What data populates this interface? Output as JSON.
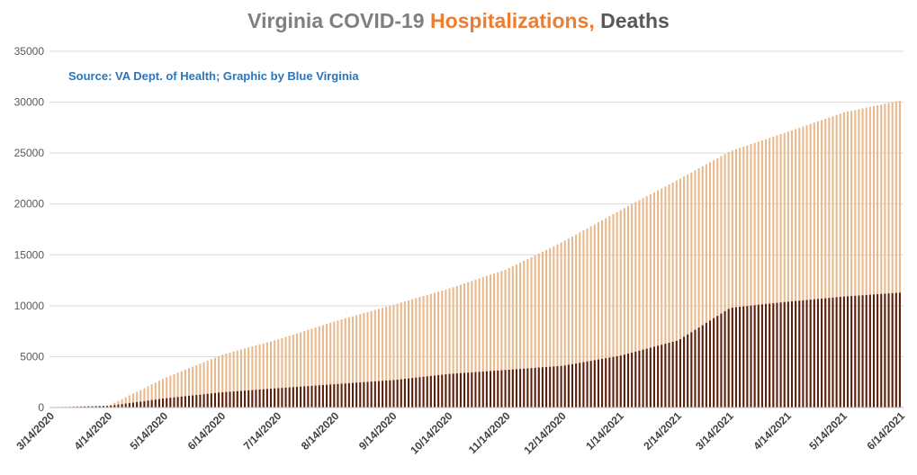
{
  "chart_data": {
    "type": "bar",
    "title_parts": [
      {
        "text": "Virginia COVID-19 ",
        "color": "#7f7f7f"
      },
      {
        "text": "Hospitalizations,",
        "color": "#ed7d31"
      },
      {
        "text": " Deaths",
        "color": "#595959"
      }
    ],
    "annotation": "Source: VA Dept. of Health; Graphic by Blue Virginia",
    "xlabel": "",
    "ylabel": "",
    "ylim": [
      0,
      35000
    ],
    "yticks": [
      "0",
      "5000",
      "10000",
      "15000",
      "20000",
      "25000",
      "30000",
      "35000"
    ],
    "grid": true,
    "start_date": "2020-03-14",
    "bar_gap_days": 1,
    "categories": [
      "3/14/2020",
      "4/14/2020",
      "5/14/2020",
      "6/14/2020",
      "7/14/2020",
      "8/14/2020",
      "9/14/2020",
      "10/14/2020",
      "11/14/2020",
      "12/14/2020",
      "1/14/2021",
      "2/14/2021",
      "3/14/2021",
      "4/14/2021",
      "5/14/2021",
      "6/14/2021"
    ],
    "series": [
      {
        "key": "hospitalizations",
        "color": "#e8b98c",
        "values": [
          60,
          200,
          2900,
          5200,
          6700,
          8500,
          10100,
          11700,
          13600,
          16300,
          19400,
          22400,
          25200,
          27100,
          29000,
          30200
        ]
      },
      {
        "key": "deaths",
        "color": "#5a1f0f",
        "values": [
          0,
          160,
          900,
          1500,
          1900,
          2300,
          2700,
          3300,
          3700,
          4100,
          5100,
          6600,
          9800,
          10400,
          10900,
          11300
        ]
      }
    ]
  }
}
